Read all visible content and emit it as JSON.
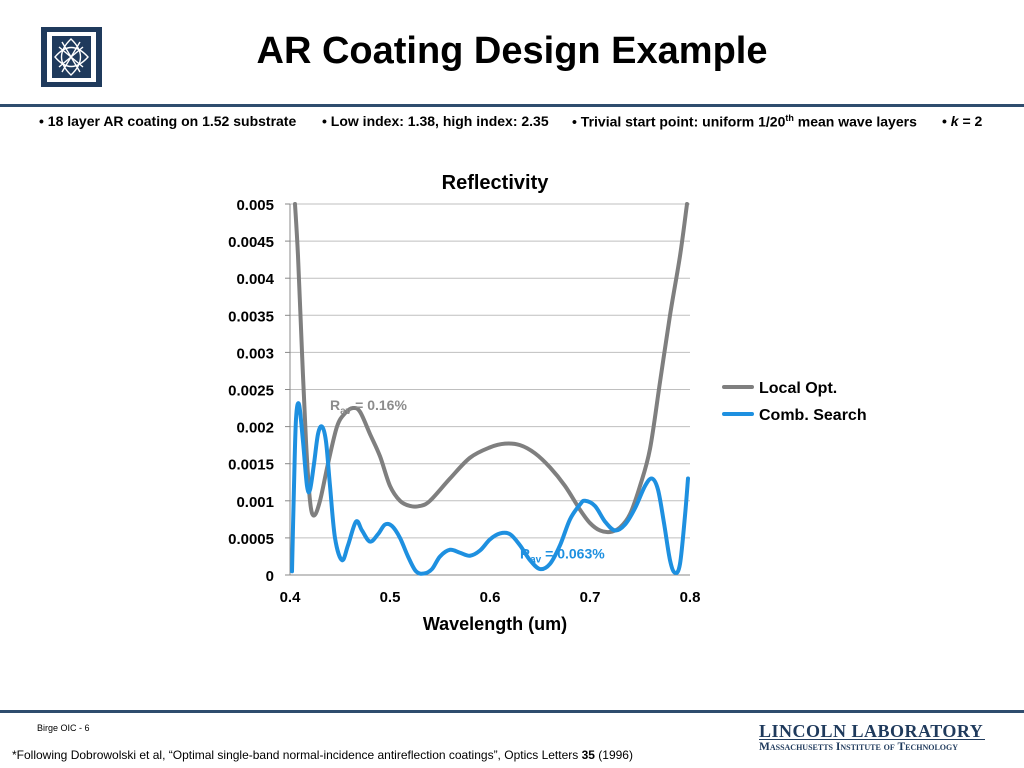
{
  "header": {
    "title": "AR Coating Design Example",
    "bullets": [
      {
        "text": "• 18 layer AR coating on 1.52 substrate"
      },
      {
        "text": "• Low index: 1.38, high index: 2.35"
      },
      {
        "text_before": "• Trivial start point: uniform 1/20",
        "sup": "th",
        "text_after": " mean wave layers"
      },
      {
        "bullet": "• ",
        "italic": "k",
        "text_after": " = 2"
      }
    ]
  },
  "chart_data": {
    "type": "line",
    "title": "Reflectivity",
    "xlabel": "Wavelength (um)",
    "ylabel": "",
    "xlim": [
      0.4,
      0.8
    ],
    "ylim": [
      0,
      0.005
    ],
    "xticks": [
      "0.4",
      "0.5",
      "0.6",
      "0.7",
      "0.8"
    ],
    "yticks": [
      "0",
      "0.0005",
      "0.001",
      "0.0015",
      "0.002",
      "0.0025",
      "0.003",
      "0.0035",
      "0.004",
      "0.0045",
      "0.005"
    ],
    "grid": "horizontal",
    "legend_position": "right",
    "series": [
      {
        "name": "Local Opt.",
        "color": "#7f7f7f",
        "points": [
          [
            0.405,
            0.005
          ],
          [
            0.408,
            0.0043
          ],
          [
            0.412,
            0.003
          ],
          [
            0.416,
            0.0018
          ],
          [
            0.42,
            0.001
          ],
          [
            0.424,
            0.0008
          ],
          [
            0.43,
            0.001
          ],
          [
            0.438,
            0.0015
          ],
          [
            0.447,
            0.002
          ],
          [
            0.455,
            0.00218
          ],
          [
            0.463,
            0.00225
          ],
          [
            0.47,
            0.0022
          ],
          [
            0.48,
            0.0019
          ],
          [
            0.49,
            0.0016
          ],
          [
            0.5,
            0.0012
          ],
          [
            0.51,
            0.001
          ],
          [
            0.52,
            0.00093
          ],
          [
            0.53,
            0.00093
          ],
          [
            0.54,
            0.001
          ],
          [
            0.56,
            0.0013
          ],
          [
            0.58,
            0.00158
          ],
          [
            0.6,
            0.00172
          ],
          [
            0.615,
            0.00177
          ],
          [
            0.63,
            0.00175
          ],
          [
            0.645,
            0.00164
          ],
          [
            0.66,
            0.00145
          ],
          [
            0.675,
            0.0012
          ],
          [
            0.69,
            0.00088
          ],
          [
            0.7,
            0.0007
          ],
          [
            0.71,
            0.0006
          ],
          [
            0.72,
            0.00058
          ],
          [
            0.73,
            0.00064
          ],
          [
            0.74,
            0.00082
          ],
          [
            0.75,
            0.0012
          ],
          [
            0.76,
            0.0017
          ],
          [
            0.77,
            0.0026
          ],
          [
            0.78,
            0.0035
          ],
          [
            0.79,
            0.0043
          ],
          [
            0.797,
            0.005
          ]
        ]
      },
      {
        "name": "Comb. Search",
        "color": "#1e90e0",
        "points": [
          [
            0.402,
            5e-05
          ],
          [
            0.404,
            0.0012
          ],
          [
            0.406,
            0.0021
          ],
          [
            0.409,
            0.0023
          ],
          [
            0.413,
            0.0018
          ],
          [
            0.417,
            0.0012
          ],
          [
            0.42,
            0.00115
          ],
          [
            0.424,
            0.0015
          ],
          [
            0.428,
            0.0019
          ],
          [
            0.432,
            0.002
          ],
          [
            0.436,
            0.0018
          ],
          [
            0.44,
            0.0012
          ],
          [
            0.445,
            0.0005
          ],
          [
            0.452,
            0.0002
          ],
          [
            0.458,
            0.0004
          ],
          [
            0.466,
            0.00072
          ],
          [
            0.472,
            0.0006
          ],
          [
            0.48,
            0.00045
          ],
          [
            0.488,
            0.00055
          ],
          [
            0.495,
            0.00068
          ],
          [
            0.502,
            0.00066
          ],
          [
            0.51,
            0.0005
          ],
          [
            0.518,
            0.00025
          ],
          [
            0.526,
            5e-05
          ],
          [
            0.534,
            2e-05
          ],
          [
            0.542,
            8e-05
          ],
          [
            0.55,
            0.00025
          ],
          [
            0.56,
            0.00034
          ],
          [
            0.57,
            0.0003
          ],
          [
            0.58,
            0.00026
          ],
          [
            0.59,
            0.00033
          ],
          [
            0.6,
            0.00048
          ],
          [
            0.61,
            0.00056
          ],
          [
            0.62,
            0.00055
          ],
          [
            0.63,
            0.0004
          ],
          [
            0.64,
            0.0002
          ],
          [
            0.65,
            8e-05
          ],
          [
            0.66,
            0.00015
          ],
          [
            0.67,
            0.0004
          ],
          [
            0.68,
            0.00075
          ],
          [
            0.69,
            0.00095
          ],
          [
            0.695,
            0.001
          ],
          [
            0.705,
            0.00093
          ],
          [
            0.715,
            0.00072
          ],
          [
            0.725,
            0.0006
          ],
          [
            0.735,
            0.00068
          ],
          [
            0.745,
            0.0009
          ],
          [
            0.755,
            0.0012
          ],
          [
            0.762,
            0.0013
          ],
          [
            0.768,
            0.00115
          ],
          [
            0.774,
            0.0007
          ],
          [
            0.78,
            0.0002
          ],
          [
            0.785,
            3e-05
          ],
          [
            0.79,
            0.00015
          ],
          [
            0.795,
            0.0008
          ],
          [
            0.798,
            0.0013
          ]
        ]
      }
    ],
    "annotations": [
      {
        "series": "Local Opt.",
        "label": "R",
        "sub": "av",
        "text": " = 0.16%",
        "x": 0.48,
        "y": 0.00225,
        "color": "#8c8c8c"
      },
      {
        "series": "Comb. Search",
        "label": "R",
        "sub": "av",
        "text": " = 0.063%",
        "x": 0.67,
        "y": 0.00025,
        "color": "#1e90e0"
      }
    ]
  },
  "footer": {
    "page_label": "Birge OIC - 6",
    "footnote_before": "*Following Dobrowolski et al, “Optimal single-band normal-incidence antireflection coatings”, Optics Letters ",
    "footnote_bold": "35",
    "footnote_after": " (1996)",
    "lab_name": "LINCOLN LABORATORY",
    "lab_institute": "Massachusetts Institute of Technology"
  },
  "colors": {
    "brand": "#1f3a5c",
    "rule": "#2f4d6e",
    "grid": "#bfbfbf"
  }
}
